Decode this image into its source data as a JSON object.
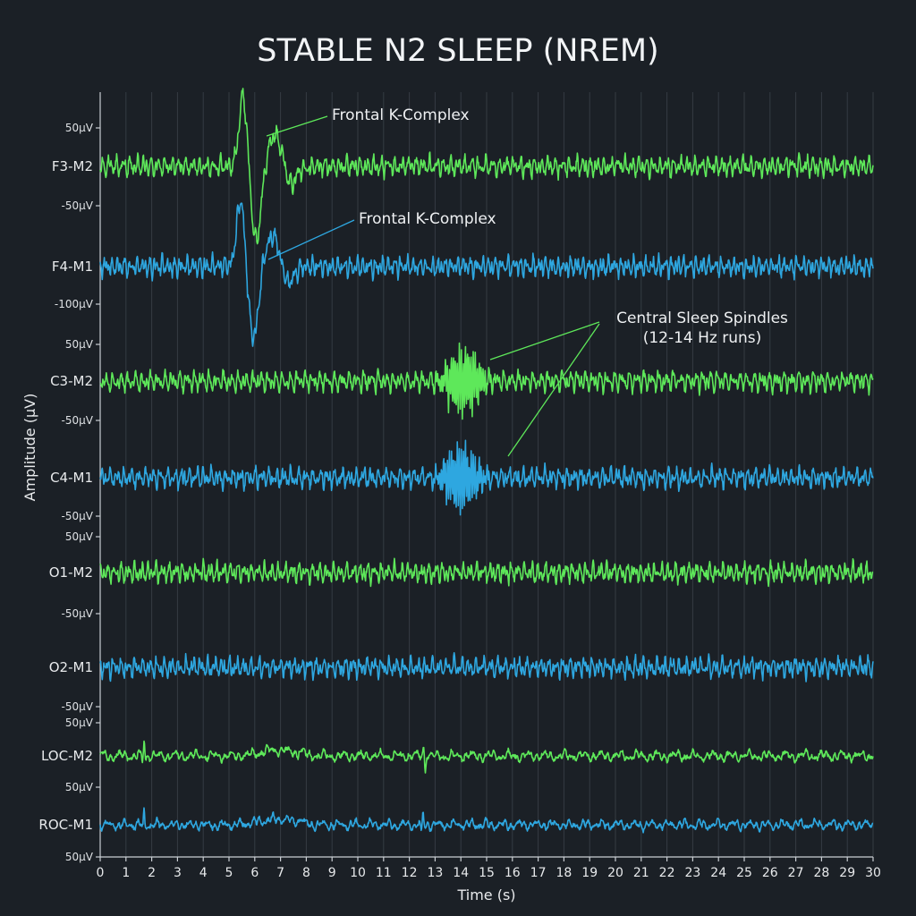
{
  "chart_data": {
    "type": "line",
    "title": "STABLE N2 SLEEP (NREM)",
    "xlabel": "Time (s)",
    "ylabel": "Amplitude (μV)",
    "xlim": [
      0,
      30
    ],
    "x_ticks": [
      0,
      1,
      2,
      3,
      4,
      5,
      6,
      7,
      8,
      9,
      10,
      11,
      12,
      13,
      14,
      15,
      16,
      17,
      18,
      19,
      20,
      21,
      22,
      23,
      24,
      25,
      26,
      27,
      28,
      29,
      30
    ],
    "grid": true,
    "colors": {
      "green": "#5ee85a",
      "blue": "#2ea7e0",
      "background": "#1b2026"
    },
    "series": [
      {
        "name": "F3-M2",
        "color": "green",
        "scale_top": "50μV",
        "scale_bottom": "-50μV",
        "events": [
          {
            "type": "k-complex",
            "t": 5.8,
            "amplitude_uv": 100
          }
        ]
      },
      {
        "name": "F4-M1",
        "color": "blue",
        "scale_top": "",
        "scale_bottom": "-100μV",
        "events": [
          {
            "type": "k-complex",
            "t": 5.7,
            "amplitude_uv": 95
          }
        ]
      },
      {
        "name": "C3-M2",
        "color": "green",
        "scale_top": "50μV",
        "scale_bottom": "-50μV",
        "events": [
          {
            "type": "spindle",
            "t": 14.1,
            "amplitude_uv": 45
          }
        ]
      },
      {
        "name": "C4-M1",
        "color": "blue",
        "scale_top": "",
        "scale_bottom": "-50μV",
        "events": [
          {
            "type": "spindle",
            "t": 14.0,
            "amplitude_uv": 45
          }
        ]
      },
      {
        "name": "O1-M2",
        "color": "green",
        "scale_top": "50μV",
        "scale_bottom": "-50μV",
        "events": []
      },
      {
        "name": "O2-M1",
        "color": "blue",
        "scale_top": "",
        "scale_bottom": "-50μV",
        "events": []
      },
      {
        "name": "LOC-M2",
        "color": "green",
        "scale_top": "50μV",
        "scale_bottom": "50μV",
        "events": [
          {
            "type": "eye-movement",
            "t": 1.7
          },
          {
            "type": "eye-movement",
            "t": 12.6
          }
        ]
      },
      {
        "name": "ROC-M1",
        "color": "blue",
        "scale_top": "",
        "scale_bottom": "50μV",
        "events": [
          {
            "type": "eye-movement",
            "t": 1.7
          },
          {
            "type": "eye-movement",
            "t": 12.5
          }
        ]
      }
    ],
    "annotations": [
      {
        "lines": [
          "Frontal K-Complex"
        ],
        "color": "green",
        "target_channel": "F3-M2"
      },
      {
        "lines": [
          "Frontal K-Complex"
        ],
        "color": "blue",
        "target_channel": "F4-M1"
      },
      {
        "lines": [
          "Central Sleep Spindles",
          "(12-14 Hz runs)"
        ],
        "color": "green",
        "target_channel": "C3-M2 / C4-M1"
      }
    ]
  }
}
